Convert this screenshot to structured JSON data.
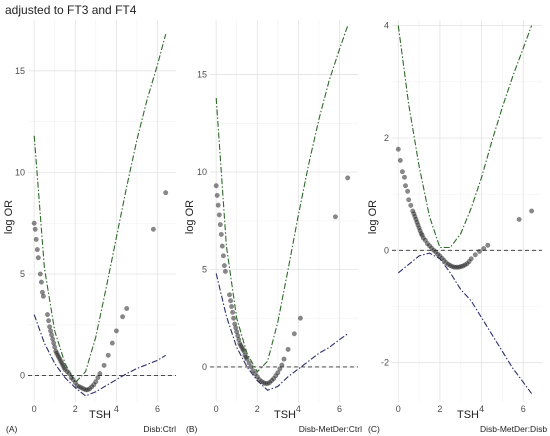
{
  "title": "adjusted to FT3 and FT4",
  "chart_data": [
    {
      "type": "scatter",
      "panel_label": "(A)",
      "caption": "Disb:Ctrl",
      "xlabel": "TSH",
      "ylabel": "log OR",
      "xlim": [
        -0.3,
        6.9
      ],
      "ylim": [
        -1.3,
        17.5
      ],
      "xticks": [
        0,
        2,
        4,
        6
      ],
      "yticks": [
        0,
        5,
        10,
        15
      ],
      "grid": true,
      "reference_line": 0,
      "points": [
        [
          0.0,
          7.5
        ],
        [
          0.05,
          7.2
        ],
        [
          0.1,
          6.7
        ],
        [
          0.15,
          6.2
        ],
        [
          0.2,
          5.8
        ],
        [
          0.3,
          5.0
        ],
        [
          0.35,
          4.6
        ],
        [
          0.4,
          4.1
        ],
        [
          0.45,
          3.9
        ],
        [
          0.65,
          3.0
        ],
        [
          0.7,
          2.7
        ],
        [
          0.75,
          2.4
        ],
        [
          0.8,
          2.2
        ],
        [
          0.85,
          2.0
        ],
        [
          0.9,
          1.8
        ],
        [
          0.95,
          1.6
        ],
        [
          1.0,
          1.4
        ],
        [
          1.05,
          1.2
        ],
        [
          1.1,
          1.1
        ],
        [
          1.15,
          1.0
        ],
        [
          1.2,
          0.9
        ],
        [
          1.25,
          0.8
        ],
        [
          1.3,
          0.7
        ],
        [
          1.35,
          0.6
        ],
        [
          1.4,
          0.5
        ],
        [
          1.45,
          0.4
        ],
        [
          1.5,
          0.3
        ],
        [
          1.6,
          0.2
        ],
        [
          1.7,
          0.1
        ],
        [
          1.8,
          -0.1
        ],
        [
          1.9,
          -0.2
        ],
        [
          2.0,
          -0.35
        ],
        [
          2.1,
          -0.5
        ],
        [
          2.2,
          -0.55
        ],
        [
          2.3,
          -0.6
        ],
        [
          2.4,
          -0.65
        ],
        [
          2.5,
          -0.7
        ],
        [
          2.6,
          -0.7
        ],
        [
          2.7,
          -0.65
        ],
        [
          2.8,
          -0.55
        ],
        [
          2.9,
          -0.45
        ],
        [
          3.0,
          -0.3
        ],
        [
          3.1,
          -0.1
        ],
        [
          3.2,
          0.1
        ],
        [
          3.4,
          0.5
        ],
        [
          3.6,
          1.0
        ],
        [
          3.8,
          1.6
        ],
        [
          4.0,
          2.2
        ],
        [
          4.3,
          2.9
        ],
        [
          4.5,
          3.3
        ],
        [
          5.8,
          7.2
        ],
        [
          6.4,
          9.0
        ]
      ],
      "series": [
        {
          "style": "upper-ci",
          "color": "#2e6b2a",
          "points": [
            [
              0.0,
              11.8
            ],
            [
              0.5,
              5.3
            ],
            [
              1.0,
              2.2
            ],
            [
              1.5,
              0.6
            ],
            [
              2.0,
              -0.35
            ],
            [
              2.5,
              0.2
            ],
            [
              3.0,
              1.9
            ],
            [
              3.5,
              4.3
            ],
            [
              4.0,
              6.8
            ],
            [
              4.5,
              9.3
            ],
            [
              5.0,
              11.6
            ],
            [
              5.5,
              13.6
            ],
            [
              6.0,
              15.3
            ],
            [
              6.4,
              16.8
            ]
          ]
        },
        {
          "style": "lower-ci",
          "color": "#2b2f6e",
          "points": [
            [
              0.0,
              3.0
            ],
            [
              0.5,
              1.6
            ],
            [
              1.0,
              0.6
            ],
            [
              1.5,
              -0.1
            ],
            [
              2.0,
              -0.6
            ],
            [
              2.5,
              -1.0
            ],
            [
              3.0,
              -0.8
            ],
            [
              3.5,
              -0.5
            ],
            [
              4.0,
              -0.2
            ],
            [
              4.5,
              0.1
            ],
            [
              5.0,
              0.35
            ],
            [
              5.5,
              0.55
            ],
            [
              6.0,
              0.75
            ],
            [
              6.4,
              1.0
            ]
          ]
        }
      ]
    },
    {
      "type": "scatter",
      "panel_label": "(B)",
      "caption": "Disb-MetDer:Ctrl",
      "xlabel": "TSH",
      "ylabel": "log OR",
      "xlim": [
        -0.3,
        6.9
      ],
      "ylim": [
        -1.8,
        17.8
      ],
      "xticks": [
        0,
        2,
        4,
        6
      ],
      "yticks": [
        0,
        5,
        10,
        15
      ],
      "grid": true,
      "reference_line": 0,
      "points": [
        [
          0.0,
          9.3
        ],
        [
          0.05,
          8.8
        ],
        [
          0.1,
          8.3
        ],
        [
          0.15,
          7.8
        ],
        [
          0.2,
          7.3
        ],
        [
          0.25,
          6.8
        ],
        [
          0.3,
          6.2
        ],
        [
          0.35,
          5.7
        ],
        [
          0.4,
          5.2
        ],
        [
          0.45,
          4.9
        ],
        [
          0.65,
          3.7
        ],
        [
          0.7,
          3.4
        ],
        [
          0.75,
          3.1
        ],
        [
          0.8,
          2.8
        ],
        [
          0.85,
          2.5
        ],
        [
          0.9,
          2.2
        ],
        [
          0.95,
          2.0
        ],
        [
          1.0,
          1.8
        ],
        [
          1.05,
          1.6
        ],
        [
          1.1,
          1.4
        ],
        [
          1.15,
          1.2
        ],
        [
          1.2,
          1.1
        ],
        [
          1.25,
          1.0
        ],
        [
          1.3,
          0.9
        ],
        [
          1.35,
          0.8
        ],
        [
          1.4,
          0.6
        ],
        [
          1.45,
          0.5
        ],
        [
          1.5,
          0.4
        ],
        [
          1.6,
          0.2
        ],
        [
          1.7,
          0.0
        ],
        [
          1.8,
          -0.2
        ],
        [
          1.9,
          -0.35
        ],
        [
          2.0,
          -0.5
        ],
        [
          2.1,
          -0.65
        ],
        [
          2.2,
          -0.75
        ],
        [
          2.3,
          -0.8
        ],
        [
          2.4,
          -0.85
        ],
        [
          2.5,
          -0.85
        ],
        [
          2.6,
          -0.8
        ],
        [
          2.7,
          -0.7
        ],
        [
          2.8,
          -0.6
        ],
        [
          2.9,
          -0.45
        ],
        [
          3.0,
          -0.3
        ],
        [
          3.1,
          -0.1
        ],
        [
          3.2,
          0.1
        ],
        [
          3.3,
          0.4
        ],
        [
          3.5,
          0.9
        ],
        [
          3.8,
          1.7
        ],
        [
          4.1,
          2.5
        ],
        [
          5.8,
          7.7
        ],
        [
          6.4,
          9.7
        ]
      ],
      "series": [
        {
          "style": "upper-ci",
          "color": "#2e6b2a",
          "points": [
            [
              0.0,
              13.8
            ],
            [
              0.5,
              6.2
            ],
            [
              1.0,
              2.5
            ],
            [
              1.5,
              0.7
            ],
            [
              2.0,
              -0.25
            ],
            [
              2.5,
              0.3
            ],
            [
              3.0,
              2.3
            ],
            [
              3.5,
              5.0
            ],
            [
              4.0,
              7.8
            ],
            [
              4.5,
              10.4
            ],
            [
              5.0,
              12.7
            ],
            [
              5.5,
              14.7
            ],
            [
              6.0,
              16.3
            ],
            [
              6.4,
              17.5
            ]
          ]
        },
        {
          "style": "lower-ci",
          "color": "#2b2f6e",
          "points": [
            [
              0.0,
              4.8
            ],
            [
              0.5,
              2.6
            ],
            [
              1.0,
              1.0
            ],
            [
              1.5,
              0.0
            ],
            [
              2.0,
              -0.7
            ],
            [
              2.5,
              -1.2
            ],
            [
              3.0,
              -1.0
            ],
            [
              3.5,
              -0.5
            ],
            [
              4.0,
              -0.1
            ],
            [
              4.5,
              0.3
            ],
            [
              5.0,
              0.7
            ],
            [
              5.5,
              1.0
            ],
            [
              6.0,
              1.4
            ],
            [
              6.4,
              1.7
            ]
          ]
        }
      ]
    },
    {
      "type": "scatter",
      "panel_label": "(C)",
      "caption": "Disb-MetDer:Disb",
      "xlabel": "TSH",
      "ylabel": "log OR",
      "xlim": [
        -0.3,
        6.9
      ],
      "ylim": [
        -2.7,
        4.1
      ],
      "xticks": [
        0,
        2,
        4,
        6
      ],
      "yticks": [
        -2,
        0,
        2,
        4
      ],
      "grid": true,
      "reference_line": 0,
      "points": [
        [
          0.0,
          1.8
        ],
        [
          0.1,
          1.6
        ],
        [
          0.2,
          1.4
        ],
        [
          0.3,
          1.3
        ],
        [
          0.35,
          1.15
        ],
        [
          0.45,
          1.05
        ],
        [
          0.5,
          0.9
        ],
        [
          0.6,
          0.8
        ],
        [
          0.7,
          0.7
        ],
        [
          0.75,
          0.65
        ],
        [
          0.8,
          0.6
        ],
        [
          0.85,
          0.55
        ],
        [
          0.9,
          0.5
        ],
        [
          0.95,
          0.45
        ],
        [
          1.0,
          0.4
        ],
        [
          1.05,
          0.35
        ],
        [
          1.1,
          0.3
        ],
        [
          1.15,
          0.27
        ],
        [
          1.2,
          0.22
        ],
        [
          1.3,
          0.18
        ],
        [
          1.4,
          0.12
        ],
        [
          1.5,
          0.08
        ],
        [
          1.6,
          0.04
        ],
        [
          1.7,
          0.0
        ],
        [
          1.8,
          -0.03
        ],
        [
          1.9,
          -0.07
        ],
        [
          2.0,
          -0.1
        ],
        [
          2.1,
          -0.14
        ],
        [
          2.2,
          -0.18
        ],
        [
          2.3,
          -0.22
        ],
        [
          2.4,
          -0.25
        ],
        [
          2.5,
          -0.27
        ],
        [
          2.6,
          -0.29
        ],
        [
          2.7,
          -0.3
        ],
        [
          2.8,
          -0.3
        ],
        [
          2.9,
          -0.3
        ],
        [
          3.0,
          -0.29
        ],
        [
          3.1,
          -0.28
        ],
        [
          3.2,
          -0.26
        ],
        [
          3.3,
          -0.24
        ],
        [
          3.4,
          -0.2
        ],
        [
          3.5,
          -0.15
        ],
        [
          3.7,
          -0.08
        ],
        [
          3.9,
          -0.02
        ],
        [
          4.1,
          0.03
        ],
        [
          4.3,
          0.09
        ],
        [
          5.8,
          0.55
        ],
        [
          6.4,
          0.7
        ]
      ],
      "series": [
        {
          "style": "upper-ci",
          "color": "#2e6b2a",
          "points": [
            [
              0.0,
              4.0
            ],
            [
              0.5,
              2.6
            ],
            [
              1.0,
              1.5
            ],
            [
              1.5,
              0.6
            ],
            [
              2.0,
              0.05
            ],
            [
              2.5,
              0.05
            ],
            [
              3.0,
              0.3
            ],
            [
              3.5,
              0.75
            ],
            [
              4.0,
              1.3
            ],
            [
              4.5,
              1.95
            ],
            [
              5.0,
              2.55
            ],
            [
              5.5,
              3.1
            ],
            [
              6.0,
              3.6
            ],
            [
              6.4,
              4.0
            ]
          ]
        },
        {
          "style": "lower-ci",
          "color": "#2b2f6e",
          "points": [
            [
              0.0,
              -0.4
            ],
            [
              0.5,
              -0.25
            ],
            [
              1.0,
              -0.1
            ],
            [
              1.5,
              -0.05
            ],
            [
              2.0,
              -0.15
            ],
            [
              2.5,
              -0.4
            ],
            [
              3.0,
              -0.7
            ],
            [
              3.5,
              -0.9
            ],
            [
              4.0,
              -1.2
            ],
            [
              4.5,
              -1.5
            ],
            [
              5.0,
              -1.8
            ],
            [
              5.5,
              -2.1
            ],
            [
              6.0,
              -2.35
            ],
            [
              6.4,
              -2.55
            ]
          ]
        }
      ]
    }
  ]
}
